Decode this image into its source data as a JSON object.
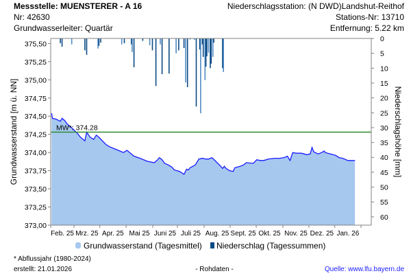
{
  "header": {
    "station": "Messstelle: MUENSTERER - A 16",
    "nr": "Nr: 42630",
    "aquifer": "Grundwasserleiter: Quartär",
    "precip_station": "Niederschlagsstation: (N DWD)Landshut-Reithof",
    "station_nr": "Stations-Nr: 13710",
    "distance": "Entfernung: 5.22 km"
  },
  "footer": {
    "note": "* Abflussjahr (1980-2024)",
    "created": "erstellt:  21.01.2026",
    "raw": "- Rohdaten -",
    "source": "Quelle: www.lfu.bayern.de"
  },
  "chart_data": {
    "type": "area",
    "ylabel": "Grundwasserstand [m ü. NN]",
    "y2label": "Niederschlagshöhe [mm]",
    "ylim": [
      373.0,
      375.57
    ],
    "y2lim": [
      0,
      62.8
    ],
    "y2_inverted": true,
    "xlim_days": [
      0,
      365.6
    ],
    "yticks": [
      "373,00",
      "373,25",
      "373,50",
      "373,75",
      "374,00",
      "374,25",
      "374,50",
      "374,75",
      "375,00",
      "375,25",
      "375,50"
    ],
    "y2ticks": [
      "0",
      "5",
      "10",
      "15",
      "20",
      "25",
      "30",
      "35",
      "40",
      "45",
      "50",
      "55",
      "60"
    ],
    "months": [
      "Feb. 25",
      "Mrz. 25",
      "Apr. 25",
      "Mai 25",
      "Juni 25",
      "Juli 25",
      "Aug. 25",
      "Sept. 25",
      "Okt. 25",
      "Nov. 25",
      "Dez. 25",
      "Jan. 26"
    ],
    "month_tick_days": [
      0,
      26.6,
      56,
      86,
      116.4,
      144.5,
      175,
      204.7,
      234.4,
      264.8,
      294.5,
      324,
      353.9
    ],
    "mean": {
      "label": "MW*: 374.28",
      "value": 374.28
    },
    "legend": [
      "Grundwasserstand (Tagesmittel)",
      "Niederschlag (Tagessummen)"
    ],
    "colors": {
      "area": "#a6c8ef",
      "line": "#1a1aff",
      "mean": "#2e8b2e",
      "precip": "#0b4a85"
    },
    "groundwater": {
      "days": [
        1,
        2,
        6,
        11,
        13,
        16,
        19,
        24,
        30,
        34,
        39,
        41,
        45,
        49,
        52,
        55,
        59,
        63,
        67,
        75,
        79,
        83,
        87,
        91,
        95,
        102,
        110,
        118,
        122,
        124,
        127,
        130,
        134,
        138,
        141,
        147,
        152,
        155,
        157,
        159,
        165,
        169,
        173,
        177,
        180,
        184,
        189,
        194,
        196,
        198,
        200,
        204,
        208,
        210,
        216,
        220,
        223,
        231,
        235,
        239,
        243,
        248,
        255,
        261,
        266,
        270,
        273,
        276,
        280,
        286,
        292,
        296,
        298,
        300,
        305,
        309,
        312,
        313,
        319,
        325,
        329,
        333,
        339,
        347
      ],
      "values": [
        374.54,
        374.47,
        374.46,
        374.43,
        374.47,
        374.44,
        374.39,
        374.34,
        374.27,
        374.21,
        374.16,
        374.28,
        374.21,
        374.18,
        374.24,
        374.21,
        374.16,
        374.11,
        374.08,
        374.04,
        374.02,
        374.0,
        374.03,
        373.99,
        373.95,
        373.92,
        373.88,
        373.86,
        373.9,
        373.93,
        373.9,
        373.85,
        373.83,
        373.8,
        373.76,
        373.74,
        373.7,
        373.77,
        373.76,
        373.79,
        373.83,
        373.91,
        373.92,
        373.91,
        373.91,
        373.93,
        373.87,
        373.81,
        373.78,
        373.81,
        373.78,
        373.75,
        373.74,
        373.79,
        373.81,
        373.83,
        373.86,
        373.85,
        373.9,
        373.89,
        373.89,
        373.91,
        373.92,
        373.92,
        373.93,
        373.95,
        373.89,
        374.0,
        373.99,
        373.99,
        373.97,
        373.98,
        374.07,
        374.01,
        373.98,
        374.0,
        374.02,
        374.0,
        373.98,
        373.96,
        373.93,
        373.92,
        373.89,
        373.89
      ]
    },
    "precipitation": {
      "days": [
        11,
        13,
        24,
        39,
        41,
        54,
        55,
        57,
        81,
        84,
        92,
        93,
        95,
        105,
        113,
        116,
        120,
        125,
        127,
        135,
        143,
        146,
        152,
        154,
        156,
        159,
        164,
        166,
        170,
        171,
        173,
        174,
        176,
        177,
        178,
        180,
        182,
        183,
        185,
        186,
        196,
        197
      ],
      "mm": [
        1.6,
        2.8,
        2.0,
        4.0,
        5.5,
        3.4,
        2.5,
        1.4,
        2.0,
        1.6,
        2.0,
        4.6,
        9.7,
        0.8,
        2.3,
        4.0,
        16.0,
        2.0,
        12.0,
        11.8,
        5.0,
        4.0,
        3.2,
        14.8,
        16.4,
        0.3,
        0.5,
        22.9,
        3.7,
        25.2,
        2.0,
        6.2,
        14.0,
        9.5,
        6.0,
        4.8,
        10.0,
        8.5,
        6.2,
        1.4,
        10.0,
        11.3
      ]
    }
  }
}
